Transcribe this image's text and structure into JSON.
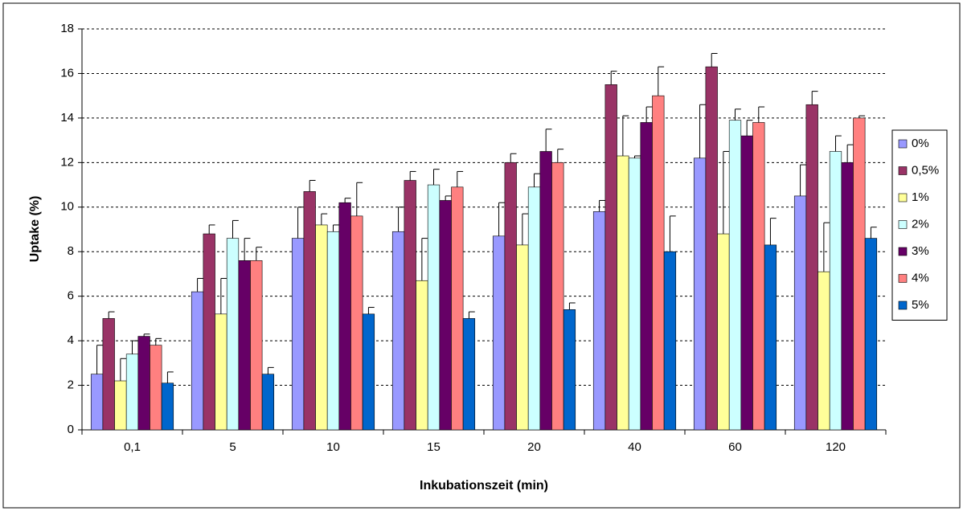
{
  "chart_data": {
    "type": "bar",
    "x_label": "Inkubationszeit (min)",
    "y_label": "Uptake (%)",
    "categories": [
      "0,1",
      "5",
      "10",
      "15",
      "20",
      "40",
      "60",
      "120"
    ],
    "series": [
      {
        "name": "0%",
        "color": "#9999ff",
        "values": [
          2.5,
          6.2,
          8.6,
          8.9,
          8.7,
          9.8,
          12.2,
          10.5
        ],
        "errors": [
          1.3,
          0.6,
          1.4,
          1.1,
          1.5,
          0.5,
          2.4,
          1.4
        ]
      },
      {
        "name": "0,5%",
        "color": "#993366",
        "values": [
          5.0,
          8.8,
          10.7,
          11.2,
          12.0,
          15.5,
          16.3,
          14.6
        ],
        "errors": [
          0.3,
          0.4,
          0.5,
          0.4,
          0.4,
          0.6,
          0.6,
          0.6
        ]
      },
      {
        "name": "1%",
        "color": "#ffff99",
        "values": [
          2.2,
          5.2,
          9.2,
          6.7,
          8.3,
          12.3,
          8.8,
          7.1
        ],
        "errors": [
          1.0,
          1.6,
          0.5,
          1.9,
          1.4,
          1.8,
          3.7,
          2.2
        ]
      },
      {
        "name": "2%",
        "color": "#ccffff",
        "values": [
          3.4,
          8.6,
          8.9,
          11.0,
          10.9,
          12.2,
          13.9,
          12.5
        ],
        "errors": [
          0.6,
          0.8,
          0.3,
          0.7,
          0.6,
          0.1,
          0.5,
          0.7
        ]
      },
      {
        "name": "3%",
        "color": "#660066",
        "values": [
          4.2,
          7.6,
          10.2,
          10.3,
          12.5,
          13.8,
          13.2,
          12.0
        ],
        "errors": [
          0.1,
          1.0,
          0.2,
          0.2,
          1.0,
          0.7,
          0.7,
          0.8
        ]
      },
      {
        "name": "4%",
        "color": "#ff8080",
        "values": [
          3.8,
          7.6,
          9.6,
          10.9,
          12.0,
          15.0,
          13.8,
          14.0
        ],
        "errors": [
          0.3,
          0.6,
          1.5,
          0.7,
          0.6,
          1.3,
          0.7,
          0.1
        ]
      },
      {
        "name": "5%",
        "color": "#0066cc",
        "values": [
          2.1,
          2.5,
          5.2,
          5.0,
          5.4,
          8.0,
          8.3,
          8.6
        ],
        "errors": [
          0.5,
          0.3,
          0.3,
          0.3,
          0.3,
          1.6,
          1.2,
          0.5
        ]
      }
    ],
    "ylim": [
      0,
      18
    ],
    "yticks": [
      0,
      2,
      4,
      6,
      8,
      10,
      12,
      14,
      16,
      18
    ],
    "grid": true,
    "legend": "right"
  }
}
